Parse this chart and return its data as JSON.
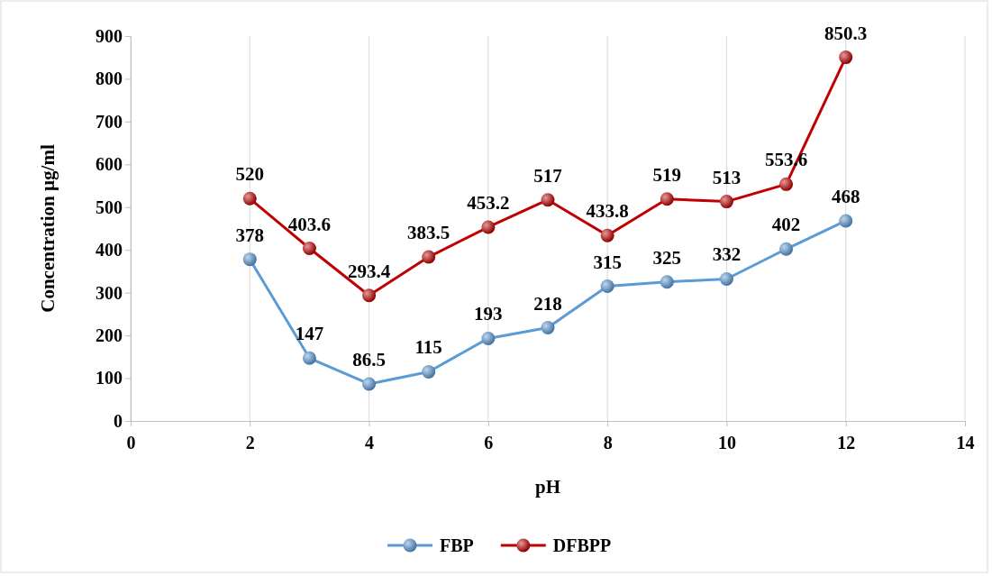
{
  "chart_data": {
    "type": "line",
    "xlabel": "pH",
    "ylabel": "Concentration µg/ml",
    "xlim": [
      0,
      14
    ],
    "xticks": [
      0,
      2,
      4,
      6,
      8,
      10,
      12,
      14
    ],
    "ylim": [
      0,
      900
    ],
    "yticks": [
      0,
      100,
      200,
      300,
      400,
      500,
      600,
      700,
      800,
      900
    ],
    "grid": "x",
    "legend": "bottom",
    "marker": "circle",
    "line_style": "solid",
    "data_labels": true,
    "series": [
      {
        "name": "FBP",
        "color": "#5b9bd5",
        "x": [
          2,
          3,
          4,
          5,
          6,
          7,
          8,
          9,
          10,
          11,
          12
        ],
        "values": [
          378,
          147,
          86.5,
          115,
          193,
          218,
          315,
          325,
          332,
          402,
          468
        ]
      },
      {
        "name": "DFBPP",
        "color": "#c00000",
        "x": [
          2,
          3,
          4,
          5,
          6,
          7,
          8,
          9,
          10,
          11,
          12
        ],
        "values": [
          520,
          403.6,
          293.4,
          383.5,
          453.2,
          517,
          433.8,
          519,
          513,
          553.6,
          850.3
        ]
      }
    ]
  }
}
